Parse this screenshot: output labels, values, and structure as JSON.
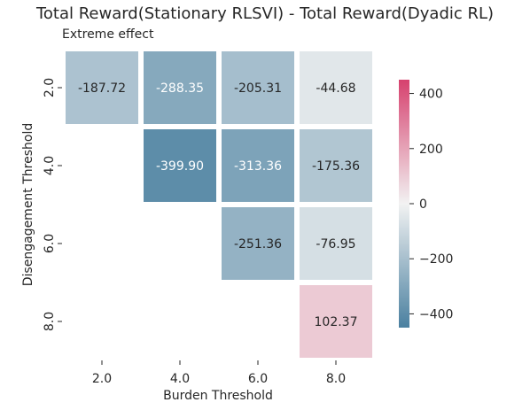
{
  "chart_data": {
    "type": "heatmap",
    "title": "Total Reward(Stationary RLSVI) - Total Reward(Dyadic RL)",
    "subtitle": "Extreme effect",
    "xlabel": "Burden Threshold",
    "ylabel": "Disengagement Threshold",
    "x_categories": [
      "2.0",
      "4.0",
      "6.0",
      "8.0"
    ],
    "y_categories": [
      "2.0",
      "4.0",
      "6.0",
      "8.0"
    ],
    "values": [
      [
        -187.72,
        -288.35,
        -205.31,
        -44.68
      ],
      [
        null,
        -399.9,
        -313.36,
        -175.36
      ],
      [
        null,
        null,
        -251.36,
        -76.95
      ],
      [
        null,
        null,
        null,
        102.37
      ]
    ],
    "value_labels": [
      [
        "-187.72",
        "-288.35",
        "-205.31",
        "-44.68"
      ],
      [
        null,
        "-399.90",
        "-313.36",
        "-175.36"
      ],
      [
        null,
        null,
        "-251.36",
        "-76.95"
      ],
      [
        null,
        null,
        null,
        "102.37"
      ]
    ],
    "colorbar": {
      "range": [
        -450,
        450
      ],
      "ticks": [
        400,
        200,
        0,
        -200,
        -400
      ],
      "tick_labels": [
        "400",
        "200",
        "0",
        "−200",
        "−400"
      ],
      "colors": {
        "low": "#4a80a0",
        "mid": "#f2f2f2",
        "high": "#d6416e"
      }
    },
    "grid": false
  }
}
